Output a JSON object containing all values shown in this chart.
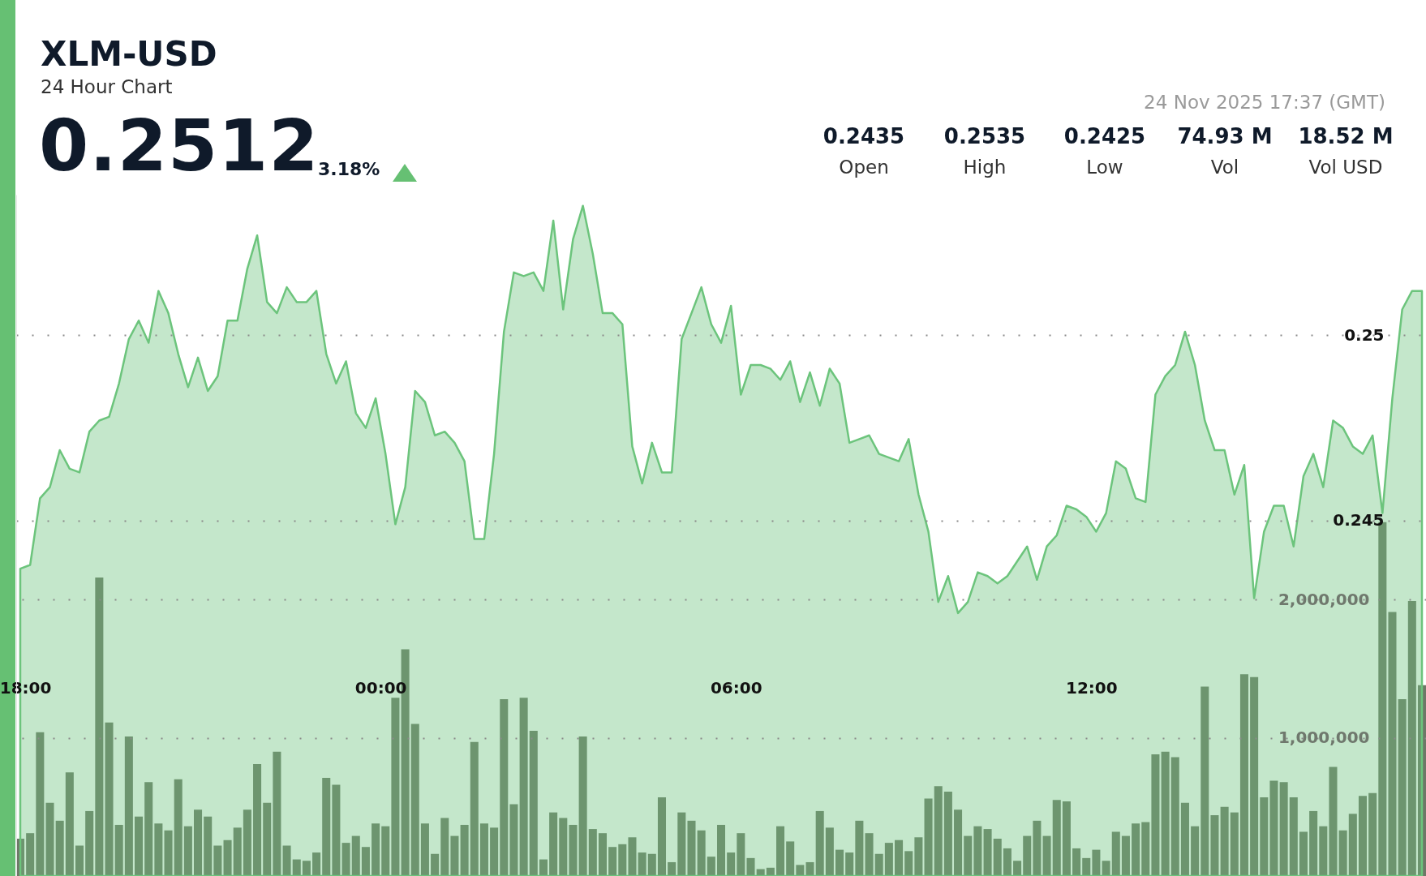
{
  "chart_data": {
    "type": "area",
    "title": "XLM-USD",
    "subtitle": "24 Hour Chart",
    "annotations": [
      "0.2512",
      "3.18%",
      "24 Nov 2025 17:37 (GMT)",
      "0.2435",
      "Open",
      "0.2535",
      "High",
      "0.2425",
      "Low",
      "74.93 M",
      "Vol",
      "18.52 M",
      "Vol USD"
    ],
    "x": [
      "2025-11-23T17:55",
      "2025-11-23T18:05",
      "2025-11-23T18:15",
      "2025-11-23T18:25",
      "2025-11-23T18:35",
      "2025-11-23T18:45",
      "2025-11-23T18:55",
      "2025-11-23T19:05",
      "2025-11-23T19:15",
      "2025-11-23T19:25",
      "2025-11-23T19:35",
      "2025-11-23T19:45",
      "2025-11-23T19:55",
      "2025-11-23T20:05",
      "2025-11-23T20:15",
      "2025-11-23T20:25",
      "2025-11-23T20:35",
      "2025-11-23T20:45",
      "2025-11-23T20:55",
      "2025-11-23T21:05",
      "2025-11-23T21:15",
      "2025-11-23T21:25",
      "2025-11-23T21:35",
      "2025-11-23T21:45",
      "2025-11-23T21:55",
      "2025-11-23T22:05",
      "2025-11-23T22:15",
      "2025-11-23T22:25",
      "2025-11-23T22:35",
      "2025-11-23T22:45",
      "2025-11-23T22:55",
      "2025-11-23T23:05",
      "2025-11-23T23:15",
      "2025-11-23T23:25",
      "2025-11-23T23:35",
      "2025-11-23T23:45",
      "2025-11-23T23:55",
      "2025-11-24T00:05",
      "2025-11-24T00:15",
      "2025-11-24T00:25",
      "2025-11-24T00:35",
      "2025-11-24T00:45",
      "2025-11-24T00:55",
      "2025-11-24T01:05",
      "2025-11-24T01:15",
      "2025-11-24T01:25",
      "2025-11-24T01:35",
      "2025-11-24T01:45",
      "2025-11-24T01:55",
      "2025-11-24T02:05",
      "2025-11-24T02:15",
      "2025-11-24T02:25",
      "2025-11-24T02:35",
      "2025-11-24T02:45",
      "2025-11-24T02:55",
      "2025-11-24T03:05",
      "2025-11-24T03:15",
      "2025-11-24T03:25",
      "2025-11-24T03:35",
      "2025-11-24T03:45",
      "2025-11-24T03:55",
      "2025-11-24T04:05",
      "2025-11-24T04:15",
      "2025-11-24T04:25",
      "2025-11-24T04:35",
      "2025-11-24T04:45",
      "2025-11-24T04:55",
      "2025-11-24T05:05",
      "2025-11-24T05:15",
      "2025-11-24T05:25",
      "2025-11-24T05:35",
      "2025-11-24T05:45",
      "2025-11-24T05:55",
      "2025-11-24T06:05",
      "2025-11-24T06:15",
      "2025-11-24T06:25",
      "2025-11-24T06:35",
      "2025-11-24T06:45",
      "2025-11-24T06:55",
      "2025-11-24T07:05",
      "2025-11-24T07:15",
      "2025-11-24T07:25",
      "2025-11-24T07:35",
      "2025-11-24T07:45",
      "2025-11-24T07:55",
      "2025-11-24T08:05",
      "2025-11-24T08:15",
      "2025-11-24T08:25",
      "2025-11-24T08:35",
      "2025-11-24T08:45",
      "2025-11-24T08:55",
      "2025-11-24T09:05",
      "2025-11-24T09:15",
      "2025-11-24T09:25",
      "2025-11-24T09:35",
      "2025-11-24T09:45",
      "2025-11-24T09:55",
      "2025-11-24T10:05",
      "2025-11-24T10:15",
      "2025-11-24T10:25",
      "2025-11-24T10:35",
      "2025-11-24T10:45",
      "2025-11-24T10:55",
      "2025-11-24T11:05",
      "2025-11-24T11:15",
      "2025-11-24T11:25",
      "2025-11-24T11:35",
      "2025-11-24T11:45",
      "2025-11-24T11:55",
      "2025-11-24T12:05",
      "2025-11-24T12:15",
      "2025-11-24T12:25",
      "2025-11-24T12:35",
      "2025-11-24T12:45",
      "2025-11-24T12:55",
      "2025-11-24T13:05",
      "2025-11-24T13:15",
      "2025-11-24T13:25",
      "2025-11-24T13:35",
      "2025-11-24T13:45",
      "2025-11-24T13:55",
      "2025-11-24T14:05",
      "2025-11-24T14:15",
      "2025-11-24T14:25",
      "2025-11-24T14:35",
      "2025-11-24T14:45",
      "2025-11-24T14:55",
      "2025-11-24T15:05",
      "2025-11-24T15:15",
      "2025-11-24T15:25",
      "2025-11-24T15:35",
      "2025-11-24T15:45",
      "2025-11-24T15:55",
      "2025-11-24T16:05",
      "2025-11-24T16:15",
      "2025-11-24T16:25",
      "2025-11-24T16:35",
      "2025-11-24T16:45",
      "2025-11-24T16:55",
      "2025-11-24T17:05",
      "2025-11-24T17:15",
      "2025-11-24T17:25",
      "2025-11-24T17:35"
    ],
    "series": [
      {
        "color": "#6cc47c",
        "values": [
          0.2437,
          0.2438,
          0.2456,
          0.2459,
          0.2469,
          0.2464,
          0.2463,
          0.2474,
          0.2477,
          0.2478,
          0.2487,
          0.2499,
          0.2504,
          0.2498,
          0.2512,
          0.2506,
          0.2495,
          0.2486,
          0.2494,
          0.2485,
          0.2489,
          0.2504,
          0.2504,
          0.2518,
          0.2527,
          0.2509,
          0.2506,
          0.2513,
          0.2509,
          0.2509,
          0.2512,
          0.2495,
          0.2487,
          0.2493,
          0.2479,
          0.2475,
          0.2483,
          0.2468,
          0.2449,
          0.2459,
          0.2485,
          0.2482,
          0.2473,
          0.2474,
          0.2471,
          0.2466,
          0.2445,
          0.2445,
          0.2468,
          0.2501,
          0.2517,
          0.2516,
          0.2517,
          0.2512,
          0.2531,
          0.2507,
          0.2526,
          0.2535,
          0.2522,
          0.2506,
          0.2506,
          0.2503,
          0.247,
          0.246,
          0.2471,
          0.2463,
          0.2463,
          0.2499,
          0.2506,
          0.2513,
          0.2503,
          0.2498,
          0.2508,
          0.2484,
          0.2492,
          0.2492,
          0.2491,
          0.2488,
          0.2493,
          0.2482,
          0.249,
          0.2481,
          0.2491,
          0.2487,
          0.2471,
          0.2472,
          0.2473,
          0.2468,
          0.2467,
          0.2466,
          0.2472,
          0.2457,
          0.2447,
          0.2428,
          0.2435,
          0.2425,
          0.2428,
          0.2436,
          0.2435,
          0.2433,
          0.2435,
          0.2439,
          0.2443,
          0.2434,
          0.2443,
          0.2446,
          0.2454,
          0.2453,
          0.2451,
          0.2447,
          0.2452,
          0.2466,
          0.2464,
          0.2456,
          0.2455,
          0.2484,
          0.2489,
          0.2492,
          0.2501,
          0.2492,
          0.2477,
          0.2469,
          0.2469,
          0.2457,
          0.2465,
          0.2429,
          0.2447,
          0.2454,
          0.2454,
          0.2443,
          0.2462,
          0.2468,
          0.2459,
          0.2477,
          0.2475,
          0.247,
          0.2468,
          0.2473,
          0.2452,
          0.2483,
          0.2507,
          0.2512,
          0.2512
        ]
      },
      {
        "type": "bar",
        "axis": "y2",
        "color": "#66705f",
        "values": [
          270000,
          310000,
          1040000,
          530000,
          400000,
          750000,
          220000,
          470000,
          2160000,
          1110000,
          370000,
          1010000,
          430000,
          680000,
          380000,
          330000,
          700000,
          360000,
          480000,
          430000,
          220000,
          260000,
          350000,
          480000,
          810000,
          530000,
          900000,
          220000,
          120000,
          110000,
          170000,
          710000,
          660000,
          240000,
          290000,
          210000,
          380000,
          360000,
          1290000,
          1640000,
          1100000,
          380000,
          160000,
          420000,
          290000,
          370000,
          970000,
          380000,
          350000,
          1280000,
          520000,
          1290000,
          1050000,
          120000,
          460000,
          420000,
          370000,
          1010000,
          340000,
          310000,
          210000,
          230000,
          280000,
          170000,
          160000,
          570000,
          100000,
          460000,
          400000,
          330000,
          140000,
          370000,
          170000,
          310000,
          130000,
          50000,
          60000,
          360000,
          250000,
          80000,
          100000,
          470000,
          350000,
          190000,
          170000,
          400000,
          310000,
          160000,
          240000,
          260000,
          180000,
          280000,
          560000,
          650000,
          610000,
          480000,
          290000,
          360000,
          340000,
          270000,
          200000,
          110000,
          290000,
          400000,
          290000,
          550000,
          540000,
          200000,
          130000,
          190000,
          110000,
          320000,
          290000,
          380000,
          390000,
          880000,
          900000,
          860000,
          530000,
          360000,
          1370000,
          440000,
          500000,
          460000,
          1460000,
          1440000,
          570000,
          690000,
          680000,
          570000,
          320000,
          470000,
          360000,
          790000,
          330000,
          450000,
          580000,
          600000,
          2560000,
          1910000,
          1280000,
          1990000,
          1380000
        ]
      }
    ],
    "xlim": [
      "2025-11-23T17:55",
      "2025-11-24T17:35"
    ],
    "xticks": [
      {
        "value": "2025-11-23T18:00",
        "label": "18:00"
      },
      {
        "value": "2025-11-24T00:00",
        "label": "00:00"
      },
      {
        "value": "2025-11-24T06:00",
        "label": "06:00"
      },
      {
        "value": "2025-11-24T12:00",
        "label": "12:00"
      }
    ],
    "ylim": [
      0.2354,
      0.2538
    ],
    "yticks": [
      0.245,
      0.25
    ],
    "y2lim": [
      0,
      4930000
    ],
    "y2ticks": [
      {
        "value": 1000000,
        "label": "1,000,000"
      },
      {
        "value": 2000000,
        "label": "2,000,000"
      }
    ],
    "grid": "y"
  }
}
